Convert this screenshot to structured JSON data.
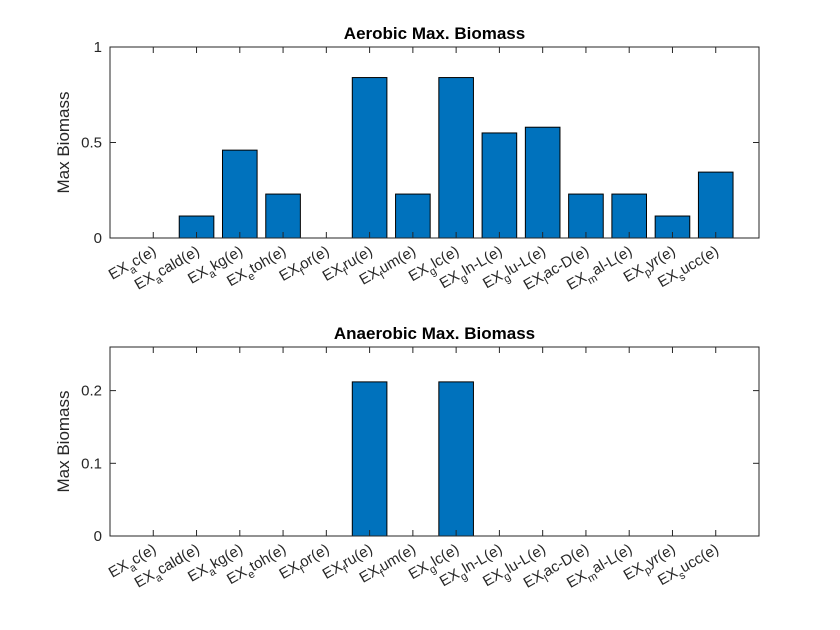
{
  "chart_data": [
    {
      "type": "bar",
      "title": "Aerobic Max. Biomass",
      "ylabel": "Max Biomass",
      "xlabel": "",
      "ylim": [
        0,
        1
      ],
      "yticks": [
        0,
        0.5,
        1
      ],
      "ytick_labels": [
        "0",
        "0.5",
        "1"
      ],
      "bar_color": "#0072BD",
      "categories": [
        {
          "main": "EX",
          "sub": "a",
          "rest": "c(e)"
        },
        {
          "main": "EX",
          "sub": "a",
          "rest": "cald(e)"
        },
        {
          "main": "EX",
          "sub": "a",
          "rest": "kg(e)"
        },
        {
          "main": "EX",
          "sub": "e",
          "rest": "toh(e)"
        },
        {
          "main": "EX",
          "sub": "f",
          "rest": "or(e)"
        },
        {
          "main": "EX",
          "sub": "f",
          "rest": "ru(e)"
        },
        {
          "main": "EX",
          "sub": "f",
          "rest": "um(e)"
        },
        {
          "main": "EX",
          "sub": "g",
          "rest": "lc(e)"
        },
        {
          "main": "EX",
          "sub": "g",
          "rest": "ln-L(e)"
        },
        {
          "main": "EX",
          "sub": "g",
          "rest": "lu-L(e)"
        },
        {
          "main": "EX",
          "sub": "l",
          "rest": "ac-D(e)"
        },
        {
          "main": "EX",
          "sub": "m",
          "rest": "al-L(e)"
        },
        {
          "main": "EX",
          "sub": "p",
          "rest": "yr(e)"
        },
        {
          "main": "EX",
          "sub": "s",
          "rest": "ucc(e)"
        }
      ],
      "values": [
        0,
        0.115,
        0.46,
        0.23,
        0,
        0.84,
        0.23,
        0.84,
        0.55,
        0.58,
        0.23,
        0.23,
        0.115,
        0.345
      ]
    },
    {
      "type": "bar",
      "title": "Anaerobic Max. Biomass",
      "ylabel": "Max Biomass",
      "xlabel": "",
      "ylim": [
        0,
        0.26
      ],
      "yticks": [
        0,
        0.1,
        0.2
      ],
      "ytick_labels": [
        "0",
        "0.1",
        "0.2"
      ],
      "bar_color": "#0072BD",
      "categories": [
        {
          "main": "EX",
          "sub": "a",
          "rest": "c(e)"
        },
        {
          "main": "EX",
          "sub": "a",
          "rest": "cald(e)"
        },
        {
          "main": "EX",
          "sub": "a",
          "rest": "kg(e)"
        },
        {
          "main": "EX",
          "sub": "e",
          "rest": "toh(e)"
        },
        {
          "main": "EX",
          "sub": "f",
          "rest": "or(e)"
        },
        {
          "main": "EX",
          "sub": "f",
          "rest": "ru(e)"
        },
        {
          "main": "EX",
          "sub": "f",
          "rest": "um(e)"
        },
        {
          "main": "EX",
          "sub": "g",
          "rest": "lc(e)"
        },
        {
          "main": "EX",
          "sub": "g",
          "rest": "ln-L(e)"
        },
        {
          "main": "EX",
          "sub": "g",
          "rest": "lu-L(e)"
        },
        {
          "main": "EX",
          "sub": "l",
          "rest": "ac-D(e)"
        },
        {
          "main": "EX",
          "sub": "m",
          "rest": "al-L(e)"
        },
        {
          "main": "EX",
          "sub": "p",
          "rest": "yr(e)"
        },
        {
          "main": "EX",
          "sub": "s",
          "rest": "ucc(e)"
        }
      ],
      "values": [
        0,
        0,
        0,
        0,
        0,
        0.212,
        0,
        0.212,
        0,
        0,
        0,
        0,
        0,
        0
      ]
    }
  ]
}
